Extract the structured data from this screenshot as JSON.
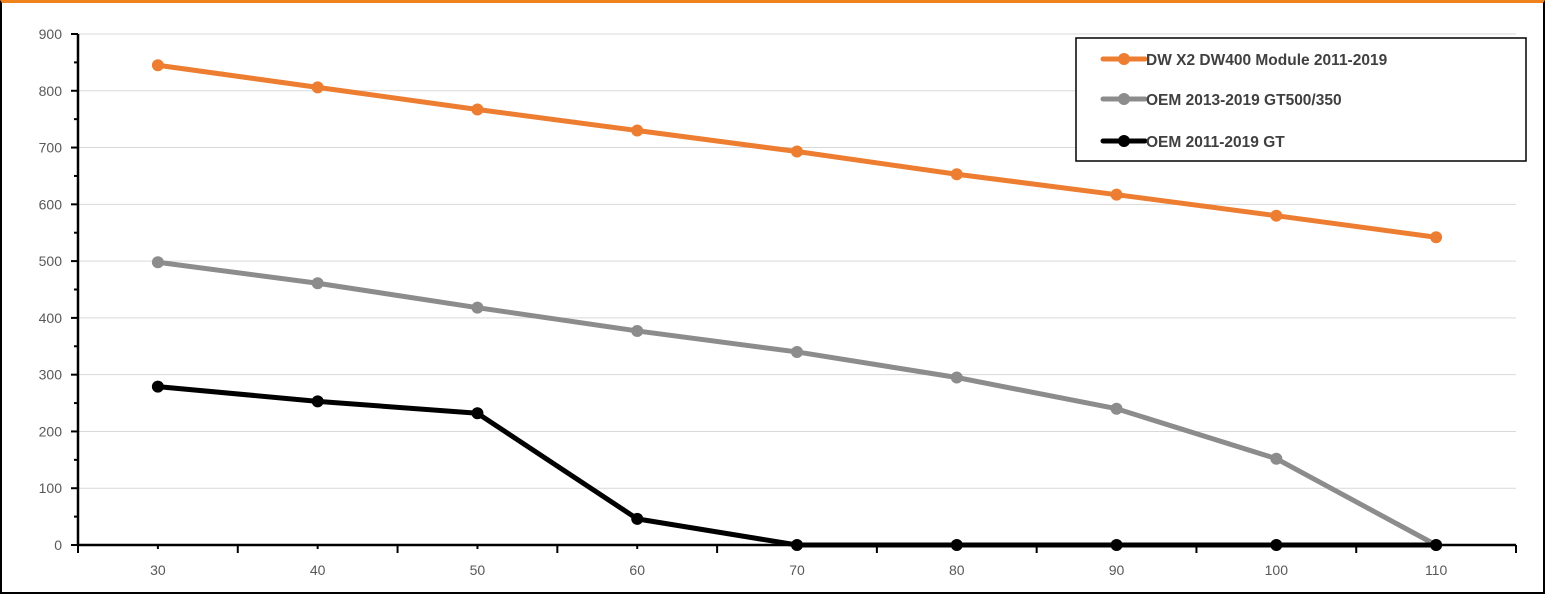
{
  "chart_data": {
    "type": "line",
    "x": [
      30,
      40,
      50,
      60,
      70,
      80,
      90,
      100,
      110
    ],
    "xlim": [
      25,
      115
    ],
    "ylim": [
      0,
      900
    ],
    "x_ticks": [
      "30",
      "40",
      "50",
      "60",
      "70",
      "80",
      "90",
      "100",
      "110"
    ],
    "y_ticks": [
      "0",
      "100",
      "200",
      "300",
      "400",
      "500",
      "600",
      "700",
      "800",
      "900"
    ],
    "grid": "horizontal",
    "legend_position": "top-right",
    "title": "",
    "xlabel": "",
    "ylabel": "",
    "series": [
      {
        "name": "DW X2 DW400 Module 2011-2019",
        "color": "#ed7d31",
        "values": [
          845,
          806,
          767,
          730,
          693,
          653,
          617,
          580,
          542
        ]
      },
      {
        "name": "OEM 2013-2019 GT500/350",
        "color": "#8c8c8c",
        "values": [
          498,
          461,
          418,
          377,
          340,
          295,
          240,
          152,
          0
        ]
      },
      {
        "name": "OEM 2011-2019 GT",
        "color": "#000000",
        "values": [
          279,
          253,
          232,
          46,
          0,
          0,
          0,
          0,
          0
        ]
      }
    ]
  }
}
